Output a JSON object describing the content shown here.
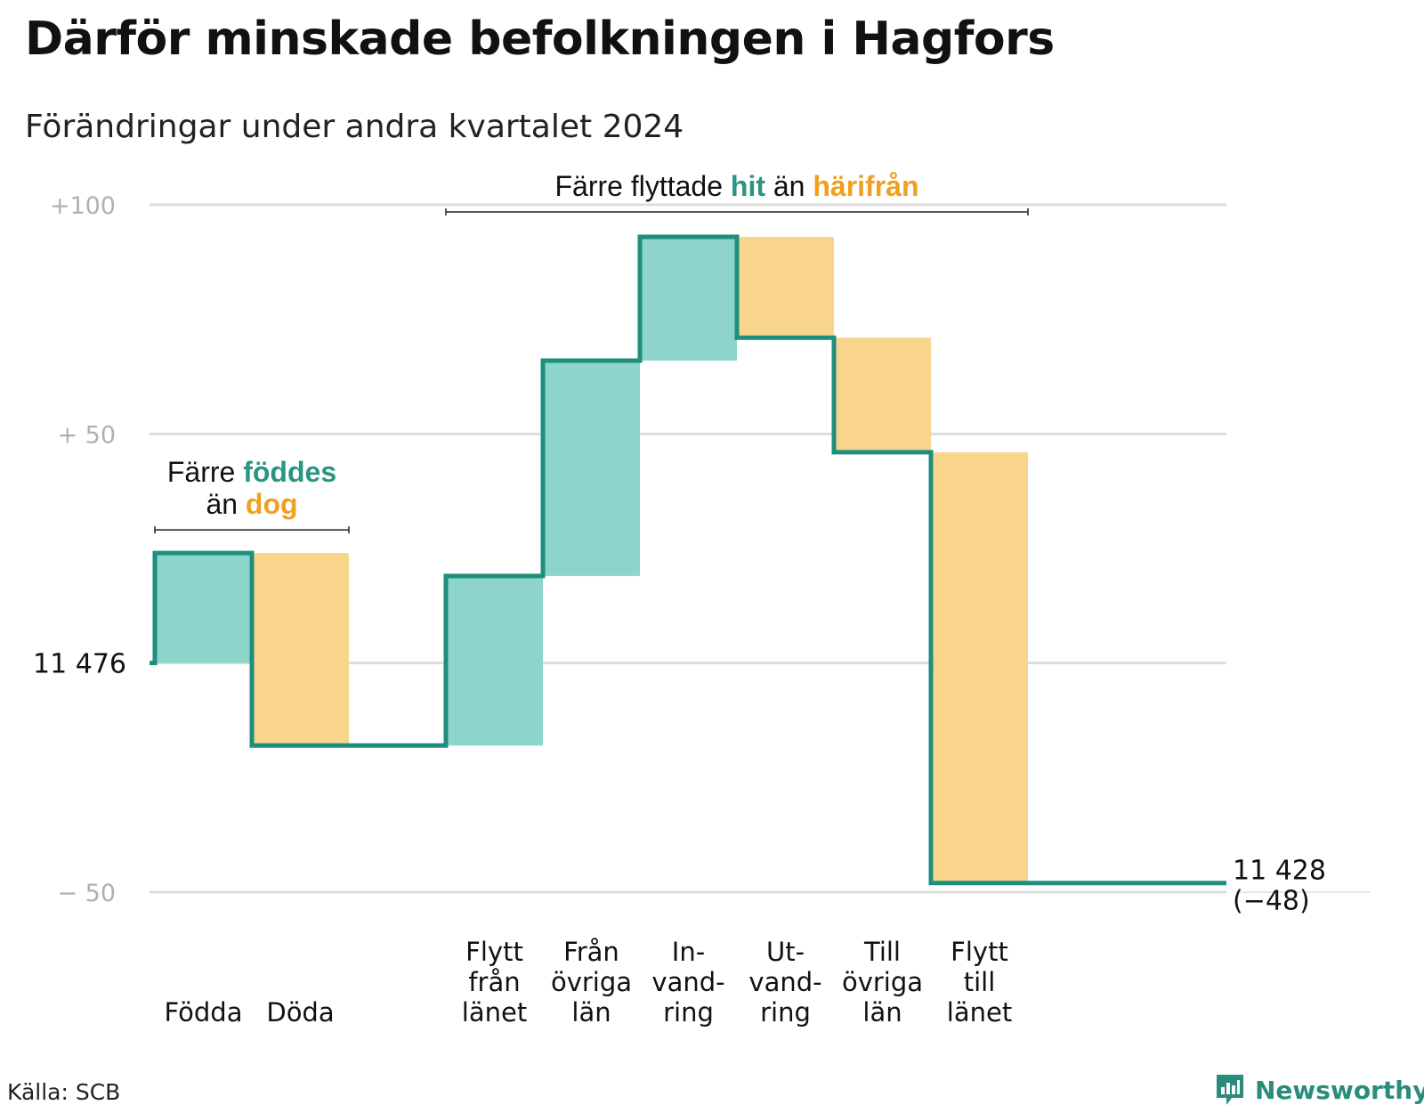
{
  "title": "Därför minskade befolkningen i Hagfors",
  "subtitle": "Förändringar under andra kvartalet 2024",
  "source": "Källa: SCB",
  "brand": {
    "name": "Newsworthy",
    "icon": "bar-chart-icon"
  },
  "colors": {
    "inflow": "#8dd4cb",
    "outflow": "#f9d58c",
    "line": "#1e8f7d",
    "grid": "#dddddd",
    "accent_in": "#2a9583",
    "accent_out": "#f0a020"
  },
  "chart_data": {
    "type": "waterfall",
    "start": {
      "label": "11  476",
      "value": 0
    },
    "end": {
      "label": "11 428",
      "change_label": "(−48)",
      "value": -48
    },
    "ylim": [
      -50,
      100
    ],
    "yticks": [
      {
        "value": 100,
        "label": "+100"
      },
      {
        "value": 50,
        "label": "+  50"
      },
      {
        "value": -50,
        "label": "−  50"
      }
    ],
    "grid": true,
    "steps": [
      {
        "name": "Födda",
        "label_lines": [
          "Födda"
        ],
        "value": 24,
        "kind": "in"
      },
      {
        "name": "Döda",
        "label_lines": [
          "Döda"
        ],
        "value": -42,
        "kind": "out"
      },
      {
        "name": "gap",
        "label_lines": [],
        "value": 0,
        "kind": "gap"
      },
      {
        "name": "Flytt från länet",
        "label_lines": [
          "Flytt",
          "från",
          "länet"
        ],
        "value": 37,
        "kind": "in"
      },
      {
        "name": "Från övriga län",
        "label_lines": [
          "Från",
          "övriga",
          "län"
        ],
        "value": 47,
        "kind": "in"
      },
      {
        "name": "Invandring",
        "label_lines": [
          "In-",
          "vand-",
          "ring"
        ],
        "value": 27,
        "kind": "in"
      },
      {
        "name": "Utvandring",
        "label_lines": [
          "Ut-",
          "vand-",
          "ring"
        ],
        "value": -22,
        "kind": "out"
      },
      {
        "name": "Till övriga län",
        "label_lines": [
          "Till",
          "övriga",
          "län"
        ],
        "value": -25,
        "kind": "out"
      },
      {
        "name": "Flytt till länet",
        "label_lines": [
          "Flytt",
          "till",
          "länet"
        ],
        "value": -94,
        "kind": "out"
      },
      {
        "name": "end-gap",
        "label_lines": [],
        "value": 0,
        "kind": "gap"
      }
    ],
    "annotations": [
      {
        "id": "births",
        "from_step": 0,
        "to_step": 1,
        "lines": [
          [
            {
              "text": "Färre ",
              "style": "plain"
            },
            {
              "text": "föddes",
              "style": "in"
            }
          ],
          [
            {
              "text": "än ",
              "style": "plain"
            },
            {
              "text": "dog",
              "style": "out"
            }
          ]
        ]
      },
      {
        "id": "moves",
        "from_step": 3,
        "to_step": 8,
        "lines": [
          [
            {
              "text": "Färre flyttade ",
              "style": "plain"
            },
            {
              "text": "hit",
              "style": "in"
            },
            {
              "text": "  än ",
              "style": "plain"
            },
            {
              "text": "härifrån",
              "style": "out"
            }
          ]
        ]
      }
    ]
  }
}
